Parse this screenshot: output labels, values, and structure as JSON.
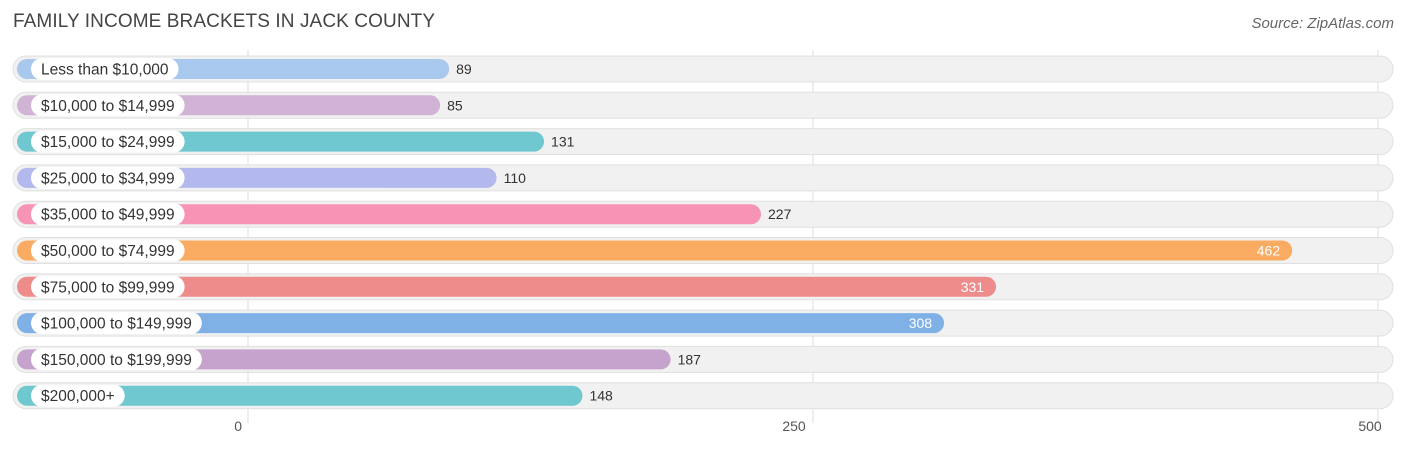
{
  "chart_data": {
    "type": "bar",
    "orientation": "horizontal",
    "title": "FAMILY INCOME BRACKETS IN JACK COUNTY",
    "source": "Source: ZipAtlas.com",
    "categories": [
      "Less than $10,000",
      "$10,000 to $14,999",
      "$15,000 to $24,999",
      "$25,000 to $34,999",
      "$35,000 to $49,999",
      "$50,000 to $74,999",
      "$75,000 to $99,999",
      "$100,000 to $149,999",
      "$150,000 to $199,999",
      "$200,000+"
    ],
    "values": [
      89,
      85,
      131,
      110,
      227,
      462,
      331,
      308,
      187,
      148
    ],
    "value_labels": [
      "89",
      "85",
      "131",
      "110",
      "227",
      "462",
      "331",
      "308",
      "187",
      "148"
    ],
    "colors": [
      "#a9c8ee",
      "#d1b3d6",
      "#6fc8cf",
      "#b3b8ed",
      "#f793b5",
      "#f9ab62",
      "#ee8c8b",
      "#80b1e6",
      "#c6a3cc",
      "#6fc8cf"
    ],
    "xlim": [
      0,
      500
    ],
    "xticks": [
      0,
      250,
      500
    ],
    "xtick_labels": [
      "0",
      "250",
      "500"
    ],
    "grid": true,
    "xlabel": "",
    "ylabel": ""
  }
}
